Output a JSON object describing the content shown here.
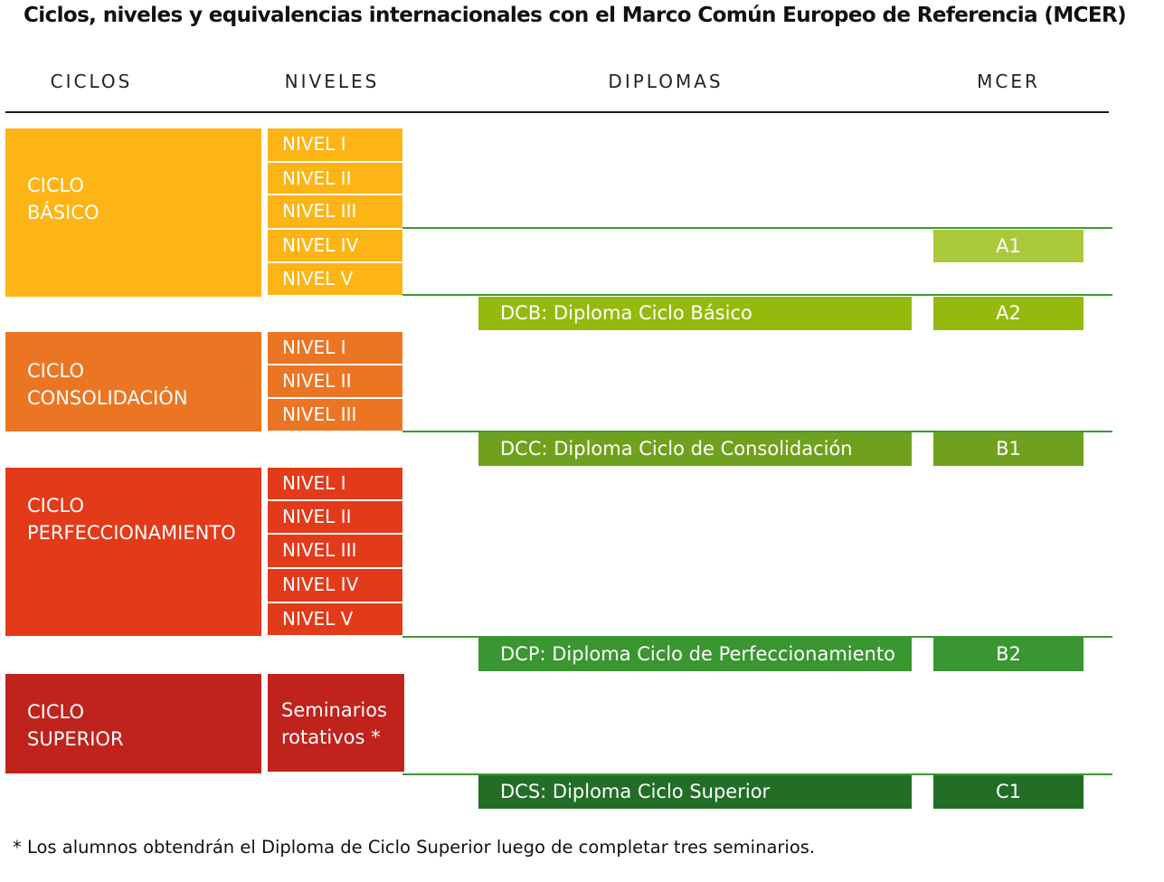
{
  "title": "Ciclos, niveles y equivalencias internacionales con el Marco Común Europeo de Referencia (MCER)",
  "headers": {
    "ciclos": "CICLOS",
    "niveles": "NIVELES",
    "diplomas": "DIPLOMAS",
    "mcer": "MCER"
  },
  "ciclos": [
    {
      "line1": "CICLO",
      "line2": "BÁSICO",
      "color": "#FDB515",
      "niveles": [
        "NIVEL I",
        "NIVEL II",
        "NIVEL III",
        "NIVEL IV",
        "NIVEL V"
      ]
    },
    {
      "line1": "CICLO",
      "line2": "CONSOLIDACIÓN",
      "color": "#EC7523",
      "niveles": [
        "NIVEL I",
        "NIVEL II",
        "NIVEL III"
      ]
    },
    {
      "line1": "CICLO",
      "line2": "PERFECCIONAMIENTO",
      "color": "#E33A1A",
      "niveles": [
        "NIVEL I",
        "NIVEL II",
        "NIVEL III",
        "NIVEL IV",
        "NIVEL V"
      ]
    },
    {
      "line1": "CICLO",
      "line2": "SUPERIOR",
      "color": "#C0221C",
      "niveles": [
        "Seminarios",
        "rotativos *"
      ]
    }
  ],
  "diplomas": [
    {
      "label": "DCB: Diploma Ciclo Básico",
      "color": "#95BA0E"
    },
    {
      "label": "DCC: Diploma Ciclo de Consolidación",
      "color": "#70A11E"
    },
    {
      "label": "DCP: Diploma Ciclo de Perfeccionamiento",
      "color": "#3A9630"
    },
    {
      "label": "DCS: Diploma Ciclo Superior",
      "color": "#226E26"
    }
  ],
  "mcer": [
    {
      "label": "A1",
      "color": "#A9C93B"
    },
    {
      "label": "A2",
      "color": "#95BA0E"
    },
    {
      "label": "B1",
      "color": "#70A11E"
    },
    {
      "label": "B2",
      "color": "#3A9630"
    },
    {
      "label": "C1",
      "color": "#226E26"
    }
  ],
  "footnote": "*  Los alumnos obtendrán el Diploma de Ciclo Superior luego de completar tres seminarios."
}
